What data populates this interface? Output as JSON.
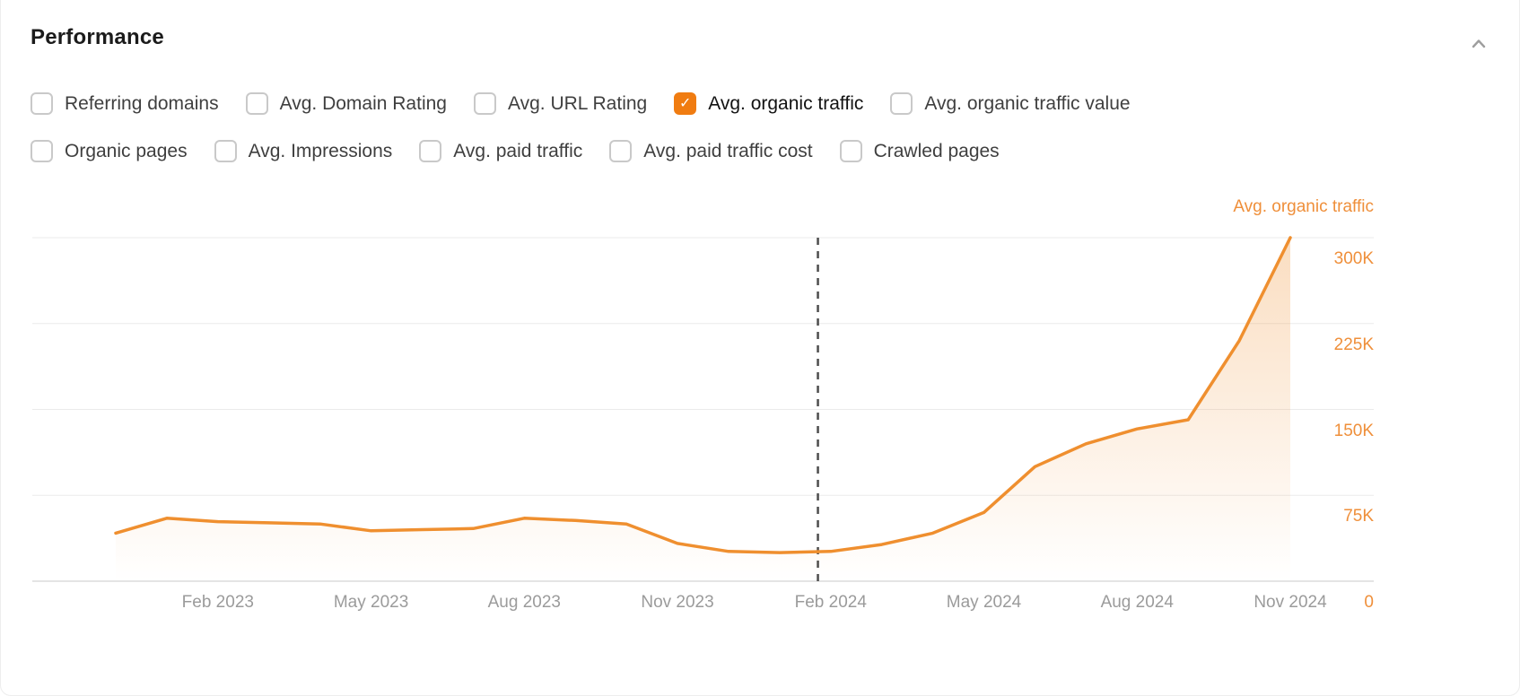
{
  "header": {
    "title": "Performance"
  },
  "colors": {
    "accent": "#f07c11",
    "line": "#ef8f2f",
    "axis_label": "#ef8f3a",
    "grid": "#ebebeb",
    "axis_line": "#dcdcdc",
    "dashed_marker": "#4d4d4d",
    "muted_text": "#9b9b9b"
  },
  "metrics": {
    "rows": [
      [
        {
          "label": "Referring domains",
          "checked": false
        },
        {
          "label": "Avg. Domain Rating",
          "checked": false
        },
        {
          "label": "Avg. URL Rating",
          "checked": false
        },
        {
          "label": "Avg. organic traffic",
          "checked": true
        },
        {
          "label": "Avg. organic traffic value",
          "checked": false
        }
      ],
      [
        {
          "label": "Organic pages",
          "checked": false
        },
        {
          "label": "Avg. Impressions",
          "checked": false
        },
        {
          "label": "Avg. paid traffic",
          "checked": false
        },
        {
          "label": "Avg. paid traffic cost",
          "checked": false
        },
        {
          "label": "Crawled pages",
          "checked": false
        }
      ]
    ]
  },
  "chart_data": {
    "type": "area",
    "series_label": "Avg. organic traffic",
    "x": [
      "Dec 2022",
      "Jan 2023",
      "Feb 2023",
      "Mar 2023",
      "Apr 2023",
      "May 2023",
      "Jun 2023",
      "Jul 2023",
      "Aug 2023",
      "Sep 2023",
      "Oct 2023",
      "Nov 2023",
      "Dec 2023",
      "Jan 2024",
      "Feb 2024",
      "Mar 2024",
      "Apr 2024",
      "May 2024",
      "Jun 2024",
      "Jul 2024",
      "Aug 2024",
      "Sep 2024",
      "Oct 2024",
      "Nov 2024"
    ],
    "values_thousands": [
      42,
      55,
      52,
      51,
      50,
      44,
      45,
      46,
      55,
      53,
      50,
      33,
      26,
      25,
      26,
      32,
      42,
      60,
      100,
      120,
      133,
      141,
      210,
      300
    ],
    "x_tick_labels": [
      "Feb 2023",
      "May 2023",
      "Aug 2023",
      "Nov 2023",
      "Feb 2024",
      "May 2024",
      "Aug 2024",
      "Nov 2024"
    ],
    "y_tick_labels": [
      "300K",
      "225K",
      "150K",
      "75K",
      "0"
    ],
    "y_ticks_k": [
      300,
      225,
      150,
      75,
      0
    ],
    "ylim_k": [
      0,
      300
    ],
    "grid": "horizontal",
    "legend_position": "top-right",
    "dashed_marker": {
      "month_index": 13.75,
      "approx_date": "Feb 2024"
    }
  }
}
